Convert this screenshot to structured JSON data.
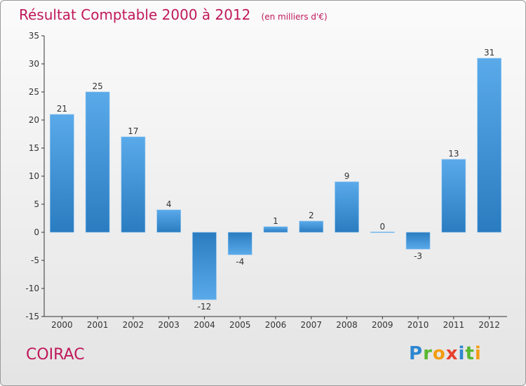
{
  "title": "Résultat Comptable 2000 à 2012",
  "subtitle": "(en milliers d'€)",
  "commune": "COIRAC",
  "logo": {
    "letters": [
      "P",
      "r",
      "o",
      "x",
      "i",
      "t",
      "i"
    ],
    "colors": [
      "#2e86d0",
      "#58b830",
      "#f39c12",
      "#e8402e",
      "#2e86d0",
      "#58b830",
      "#f39c12"
    ]
  },
  "colors": {
    "title": "#c0185a",
    "bar_light": "#5aaaea",
    "bar_dark": "#2a7cc0"
  },
  "chart_data": {
    "type": "bar",
    "title": "Résultat Comptable 2000 à 2012",
    "xlabel": "",
    "ylabel": "(en milliers d'€)",
    "categories": [
      "2000",
      "2001",
      "2002",
      "2003",
      "2004",
      "2005",
      "2006",
      "2007",
      "2008",
      "2009",
      "2010",
      "2011",
      "2012"
    ],
    "values": [
      21,
      25,
      17,
      4,
      -12,
      -4,
      1,
      2,
      9,
      0,
      -3,
      13,
      31
    ],
    "ylim": [
      -15,
      35
    ],
    "yticks": [
      -15,
      -10,
      -5,
      0,
      5,
      10,
      15,
      20,
      25,
      30,
      35
    ],
    "grid": false
  }
}
